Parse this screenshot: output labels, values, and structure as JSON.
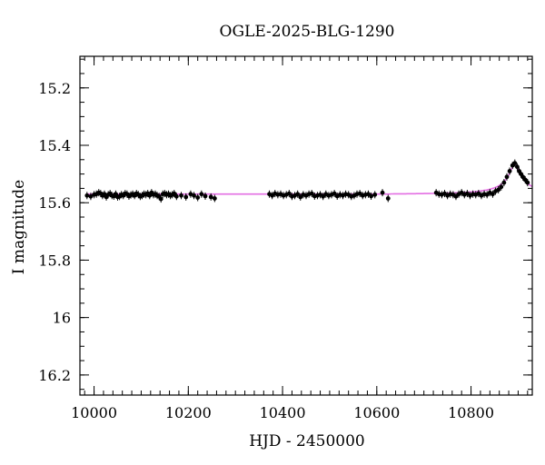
{
  "chart_data": {
    "type": "scatter",
    "title": "OGLE-2025-BLG-1290",
    "xlabel": "HJD - 2450000",
    "ylabel": "I magnitude",
    "xlim": [
      9970,
      10930
    ],
    "ylim": [
      16.27,
      15.09
    ],
    "y_inverted": true,
    "x_ticks": [
      10000,
      10200,
      10400,
      10600,
      10800
    ],
    "x_tick_labels": [
      "10000",
      "10200",
      "10400",
      "10600",
      "10800"
    ],
    "x_minor_step": 20,
    "y_ticks": [
      15.2,
      15.4,
      15.6,
      15.8,
      16.0,
      16.2
    ],
    "y_tick_labels": [
      "15.2",
      "15.4",
      "15.6",
      "15.8",
      "16",
      "16.2"
    ],
    "y_minor_step": 0.05,
    "grid": false,
    "legend": "none",
    "colors": {
      "data": "#000000",
      "model": "#e36ee3"
    },
    "series": [
      {
        "points": [
          [
            9985,
            15.575
          ],
          [
            9993,
            15.578
          ],
          [
            10000,
            15.572
          ],
          [
            10005,
            15.57
          ],
          [
            10010,
            15.565
          ],
          [
            10014,
            15.568
          ],
          [
            10018,
            15.575
          ],
          [
            10022,
            15.57
          ],
          [
            10026,
            15.58
          ],
          [
            10030,
            15.572
          ],
          [
            10034,
            15.568
          ],
          [
            10038,
            15.575
          ],
          [
            10042,
            15.577
          ],
          [
            10046,
            15.57
          ],
          [
            10050,
            15.58
          ],
          [
            10054,
            15.578
          ],
          [
            10058,
            15.572
          ],
          [
            10062,
            15.575
          ],
          [
            10066,
            15.568
          ],
          [
            10070,
            15.57
          ],
          [
            10074,
            15.577
          ],
          [
            10078,
            15.573
          ],
          [
            10082,
            15.57
          ],
          [
            10086,
            15.575
          ],
          [
            10090,
            15.568
          ],
          [
            10094,
            15.572
          ],
          [
            10098,
            15.578
          ],
          [
            10102,
            15.575
          ],
          [
            10106,
            15.57
          ],
          [
            10110,
            15.572
          ],
          [
            10114,
            15.568
          ],
          [
            10118,
            15.575
          ],
          [
            10122,
            15.565
          ],
          [
            10126,
            15.572
          ],
          [
            10130,
            15.57
          ],
          [
            10134,
            15.575
          ],
          [
            10138,
            15.578
          ],
          [
            10142,
            15.587
          ],
          [
            10146,
            15.57
          ],
          [
            10150,
            15.568
          ],
          [
            10154,
            15.572
          ],
          [
            10158,
            15.57
          ],
          [
            10162,
            15.575
          ],
          [
            10166,
            15.572
          ],
          [
            10170,
            15.568
          ],
          [
            10175,
            15.578
          ],
          [
            10185,
            15.575
          ],
          [
            10195,
            15.58
          ],
          [
            10205,
            15.57
          ],
          [
            10212,
            15.575
          ],
          [
            10220,
            15.582
          ],
          [
            10228,
            15.57
          ],
          [
            10236,
            15.577
          ],
          [
            10248,
            15.58
          ],
          [
            10256,
            15.585
          ],
          [
            10372,
            15.57
          ],
          [
            10378,
            15.575
          ],
          [
            10384,
            15.568
          ],
          [
            10390,
            15.572
          ],
          [
            10396,
            15.57
          ],
          [
            10402,
            15.575
          ],
          [
            10408,
            15.572
          ],
          [
            10414,
            15.568
          ],
          [
            10420,
            15.578
          ],
          [
            10426,
            15.575
          ],
          [
            10432,
            15.57
          ],
          [
            10438,
            15.58
          ],
          [
            10444,
            15.572
          ],
          [
            10450,
            15.575
          ],
          [
            10456,
            15.57
          ],
          [
            10462,
            15.568
          ],
          [
            10468,
            15.577
          ],
          [
            10474,
            15.575
          ],
          [
            10480,
            15.572
          ],
          [
            10486,
            15.578
          ],
          [
            10492,
            15.57
          ],
          [
            10498,
            15.575
          ],
          [
            10504,
            15.572
          ],
          [
            10510,
            15.568
          ],
          [
            10516,
            15.577
          ],
          [
            10522,
            15.572
          ],
          [
            10528,
            15.575
          ],
          [
            10534,
            15.57
          ],
          [
            10540,
            15.572
          ],
          [
            10546,
            15.578
          ],
          [
            10552,
            15.575
          ],
          [
            10558,
            15.57
          ],
          [
            10564,
            15.568
          ],
          [
            10570,
            15.575
          ],
          [
            10576,
            15.572
          ],
          [
            10582,
            15.57
          ],
          [
            10588,
            15.577
          ],
          [
            10596,
            15.572
          ],
          [
            10612,
            15.565
          ],
          [
            10624,
            15.585
          ],
          [
            10726,
            15.565
          ],
          [
            10732,
            15.57
          ],
          [
            10738,
            15.572
          ],
          [
            10744,
            15.568
          ],
          [
            10750,
            15.575
          ],
          [
            10756,
            15.57
          ],
          [
            10762,
            15.572
          ],
          [
            10768,
            15.578
          ],
          [
            10774,
            15.57
          ],
          [
            10780,
            15.565
          ],
          [
            10786,
            15.572
          ],
          [
            10792,
            15.568
          ],
          [
            10798,
            15.575
          ],
          [
            10804,
            15.57
          ],
          [
            10810,
            15.572
          ],
          [
            10816,
            15.568
          ],
          [
            10822,
            15.575
          ],
          [
            10828,
            15.57
          ],
          [
            10834,
            15.572
          ],
          [
            10840,
            15.565
          ],
          [
            10846,
            15.57
          ],
          [
            10852,
            15.56
          ],
          [
            10858,
            15.555
          ],
          [
            10864,
            15.545
          ],
          [
            10870,
            15.53
          ],
          [
            10876,
            15.51
          ],
          [
            10882,
            15.49
          ],
          [
            10888,
            15.47
          ],
          [
            10893,
            15.462
          ],
          [
            10898,
            15.475
          ],
          [
            10902,
            15.49
          ],
          [
            10906,
            15.5
          ],
          [
            10910,
            15.51
          ],
          [
            10915,
            15.52
          ],
          [
            10920,
            15.53
          ]
        ]
      }
    ],
    "model": {
      "baseline": 15.57,
      "peak_t": 10893,
      "peak_mag": 15.465,
      "width": 22
    }
  }
}
